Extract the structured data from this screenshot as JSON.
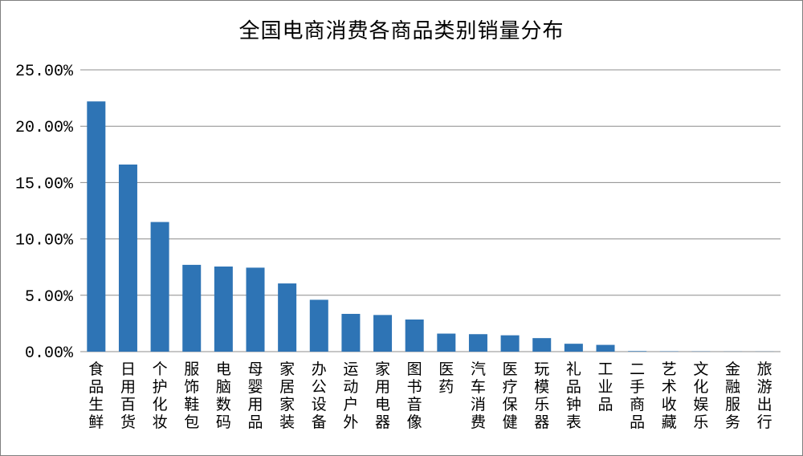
{
  "chart_data": {
    "type": "bar",
    "title": "全国电商消费各商品类别销量分布",
    "xlabel": "",
    "ylabel": "",
    "ylim": [
      0,
      25
    ],
    "yticks": [
      "0.00%",
      "5.00%",
      "10.00%",
      "15.00%",
      "20.00%",
      "25.00%"
    ],
    "grid": true,
    "bar_color": "#2e74b5",
    "categories": [
      "食品生鲜",
      "日用百货",
      "个护化妆",
      "服饰鞋包",
      "电脑数码",
      "母婴用品",
      "家居家装",
      "办公设备",
      "运动户外",
      "家用电器",
      "图书音像",
      "医药",
      "汽车消费",
      "医疗保健",
      "玩模乐器",
      "礼品钟表",
      "工业品",
      "二手商品",
      "艺术收藏",
      "文化娱乐",
      "金融服务",
      "旅游出行"
    ],
    "values": [
      22.2,
      16.6,
      11.5,
      7.7,
      7.55,
      7.45,
      6.05,
      4.6,
      3.35,
      3.25,
      2.85,
      1.6,
      1.55,
      1.45,
      1.2,
      0.7,
      0.6,
      0.05,
      0.03,
      0.02,
      0.01,
      0.01
    ]
  }
}
